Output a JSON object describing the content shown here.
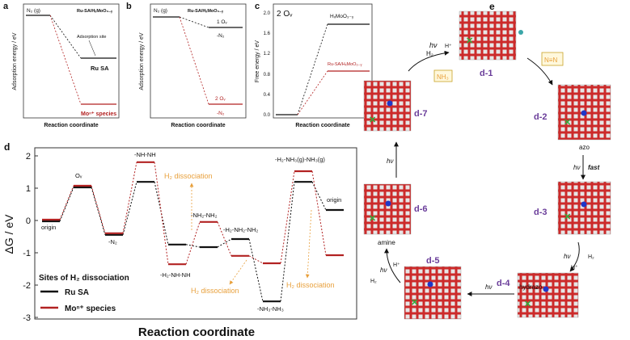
{
  "colors": {
    "black": "#111111",
    "red": "#b22222",
    "orange": "#e8a03c",
    "purple": "#6a3d9a",
    "navy": "#2b2f8f",
    "lattice_red": "#cc2a2a",
    "oxygen_white": "#e6e6e6",
    "ru_green": "#2fae3c",
    "n_blue": "#1f37c8",
    "teal": "#3aa6a8"
  },
  "panel_a": {
    "label": "a",
    "ylabel": "Adsorption energy / eV",
    "xlabel": "Reaction coordinate",
    "state_label": "N₂ (g)",
    "legend": "Ru-SA/HₓMoO₃₋ᵧ",
    "annotation": "Adsorption site",
    "series_black_label": "Ru SA",
    "series_red_label": "Moⁿ⁺ species"
  },
  "panel_b": {
    "label": "b",
    "ylabel": "Adsorption energy / eV",
    "xlabel": "Reaction coordinate",
    "state_label": "N₂ (g)",
    "legend": "Ru-SA/HₓMoO₃₋ᵧ",
    "black_top": "1 Oᵥ",
    "black_bottom": "-N₂",
    "red_top": "2 Oᵥ",
    "red_bottom": "-N₂"
  },
  "panel_c": {
    "label": "c",
    "ylabel": "Free energy / eV",
    "xlabel": "Reaction coordinate",
    "title": "2 Oᵥ",
    "black_label": "HₓMoO₃₋ᵧ",
    "red_label": "Ru-SA/HₓMoO₃₋ᵧ",
    "ticks": [
      "2.0",
      "1.6",
      "1.2",
      "0.8",
      "0.4",
      "0.0"
    ]
  },
  "chart_data": {
    "type": "line",
    "panel_label": "d",
    "title": "",
    "xlabel": "Reaction coordinate",
    "ylabel": "ΔG / eV",
    "ylim": [
      -3,
      2
    ],
    "yticks": [
      "2",
      "1",
      "0",
      "-1",
      "-2",
      "-3"
    ],
    "series": [
      {
        "name": "Ru SA",
        "values": [
          0.0,
          1.05,
          -0.42,
          1.22,
          -0.72,
          -0.8,
          -0.55,
          -2.48,
          1.22,
          0.35
        ]
      },
      {
        "name": "Moⁿ⁺ species",
        "values": [
          0.0,
          1.05,
          -0.42,
          1.78,
          -1.38,
          -0.07,
          -1.12,
          -1.35,
          1.5,
          -1.1
        ]
      }
    ],
    "state_labels": [
      "origin",
      "Oᵥ",
      "-N₂",
      "-NH-NH",
      "-H₂-NH-NH",
      "-NH₂-NH₂",
      "-H₂-NH₂-NH₂",
      "-NH₃-NH₃",
      "-H₂-NH₃(g)-NH₃(g)",
      "origin"
    ],
    "annotations": [
      "H₂ dissociation",
      "H₂ dissociation",
      "H₂ dissociation"
    ],
    "legend_title": "Sites of H₂ dissociation",
    "legend": [
      "Ru SA",
      "Moⁿ⁺ species"
    ]
  },
  "panel_e": {
    "label": "e",
    "states": [
      "d-1",
      "d-2",
      "d-3",
      "d-4",
      "d-5",
      "d-6",
      "d-7"
    ],
    "captions": {
      "azo": "azo",
      "fast": "fast",
      "hydrazo": "hydrazo",
      "amine": "amine"
    },
    "reagents": {
      "n2": "N≡N",
      "nh3": "NH₃",
      "h2": "H₂",
      "hplus": "H⁺"
    },
    "light": "hν"
  }
}
